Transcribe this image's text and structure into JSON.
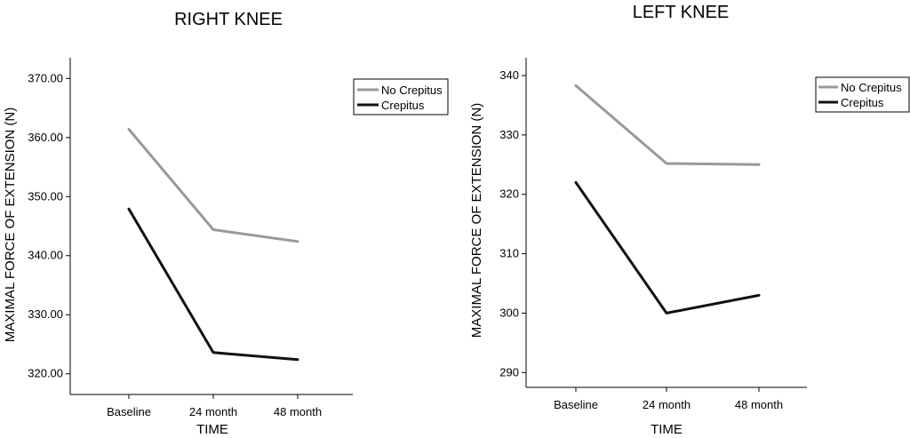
{
  "chart_data": [
    {
      "type": "line",
      "title": "RIGHT KNEE",
      "xlabel": "TIME",
      "ylabel": "MAXIMAL FORCE OF EXTENSION (N)",
      "categories": [
        "Baseline",
        "24 month",
        "48 month"
      ],
      "ylim": [
        316.5,
        373.5
      ],
      "yticks": [
        320,
        330,
        340,
        350,
        360,
        370
      ],
      "ytick_labels": [
        "320.00",
        "330.00",
        "340.00",
        "350.00",
        "360.00",
        "370.00"
      ],
      "grid": false,
      "legend_position": "top-right",
      "series": [
        {
          "name": "No Crepitus",
          "values": [
            361.4,
            344.4,
            342.4
          ],
          "color": "#999999"
        },
        {
          "name": "Crepitus",
          "values": [
            347.9,
            323.6,
            322.4
          ],
          "color": "#111111"
        }
      ]
    },
    {
      "type": "line",
      "title": "LEFT KNEE",
      "xlabel": "TIME",
      "ylabel": "MAXIMAL FORCE OF EXTENSION (N)",
      "categories": [
        "Baseline",
        "24 month",
        "48 month"
      ],
      "ylim": [
        287.5,
        343.0
      ],
      "yticks": [
        290,
        300,
        310,
        320,
        330,
        340
      ],
      "ytick_labels": [
        "290",
        "300",
        "310",
        "320",
        "330",
        "340"
      ],
      "grid": false,
      "legend_position": "top-right",
      "series": [
        {
          "name": "No Crepitus",
          "values": [
            338.3,
            325.2,
            325.0
          ],
          "color": "#999999"
        },
        {
          "name": "Crepitus",
          "values": [
            322.0,
            300.0,
            303.0
          ],
          "color": "#111111"
        }
      ]
    }
  ]
}
